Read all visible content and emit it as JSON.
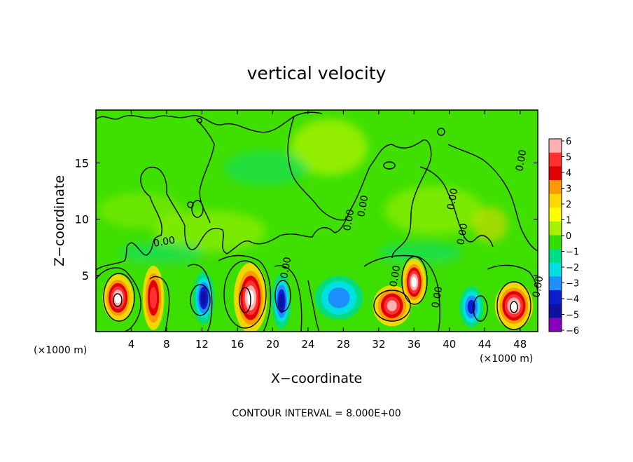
{
  "chart_data": {
    "type": "heatmap",
    "title": "vertical velocity",
    "xlabel": "X−coordinate",
    "ylabel": "Z−coordinate",
    "x_unit": "(×1000 m)",
    "y_unit": "(×1000 m)",
    "footer": "CONTOUR INTERVAL = 8.000E+00",
    "xlim": [
      0,
      50
    ],
    "ylim": [
      0,
      19.7
    ],
    "x_ticks": [
      4,
      8,
      12,
      16,
      20,
      24,
      28,
      32,
      36,
      40,
      44,
      48
    ],
    "y_ticks": [
      5,
      10,
      15
    ],
    "colorbar": {
      "range": [
        -6,
        6
      ],
      "tick_labels": [
        "6",
        "5",
        "4",
        "3",
        "2",
        "1",
        "0",
        "−1",
        "−2",
        "−3",
        "−4",
        "−5",
        "−6"
      ],
      "colors": [
        "#ffb0b0",
        "#ff3030",
        "#e00000",
        "#ff9900",
        "#ffd800",
        "#ffff00",
        "#a8f000",
        "#33dd00",
        "#00dd88",
        "#00e0e0",
        "#1e8fff",
        "#0a1ed0",
        "#1010a0",
        "#8800bb"
      ]
    },
    "contour_labels": [
      "0.00",
      "0.00",
      "0.00",
      "0.00",
      "0.00",
      "0.00",
      "0.00",
      "0.00",
      "0.00",
      "0.00"
    ],
    "cells": [
      {
        "x": 2.5,
        "z": 3.0,
        "value": 6,
        "sx": 1.3,
        "sz": 1.6
      },
      {
        "x": 6.5,
        "z": 3.0,
        "value": 4,
        "sx": 0.9,
        "sz": 2.2
      },
      {
        "x": 12.2,
        "z": 3.0,
        "value": -5,
        "sx": 0.9,
        "sz": 1.8
      },
      {
        "x": 17.5,
        "z": 3.0,
        "value": 6,
        "sx": 1.4,
        "sz": 2.4
      },
      {
        "x": 21.0,
        "z": 2.7,
        "value": -5,
        "sx": 0.8,
        "sz": 1.9
      },
      {
        "x": 27.5,
        "z": 3.0,
        "value": -2,
        "sx": 2.0,
        "sz": 1.5
      },
      {
        "x": 33.5,
        "z": 2.3,
        "value": 5,
        "sx": 1.6,
        "sz": 1.4
      },
      {
        "x": 36.0,
        "z": 4.4,
        "value": 6,
        "sx": 1.0,
        "sz": 1.6
      },
      {
        "x": 42.5,
        "z": 2.2,
        "value": -4,
        "sx": 1.0,
        "sz": 1.4
      },
      {
        "x": 47.3,
        "z": 2.3,
        "value": 6,
        "sx": 1.6,
        "sz": 1.6
      }
    ]
  }
}
